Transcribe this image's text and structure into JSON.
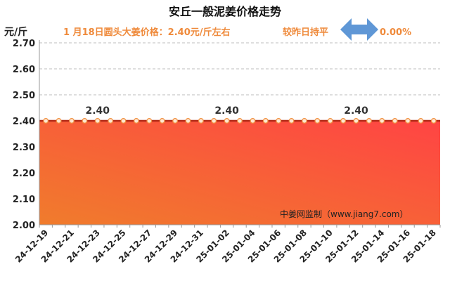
{
  "title": "安丘一般泥姜价格走势",
  "unit_label": "元/斤",
  "price_note": "1 月18日圆头大姜价格：2.40元/斤左右",
  "trend_note": "较昨日持平",
  "change_value": "0.00%",
  "watermark": "中姜网监制（www.jiang7.com）",
  "colors": {
    "area_top": "#ff4444",
    "area_bottom": "#f07c2c",
    "line": "#b22a18",
    "marker_fill": "#ffe7d2",
    "marker_stroke": "#f09040",
    "arrow": "#5f97d6",
    "accent_text": "#ef8a3b"
  },
  "chart_data": {
    "type": "area",
    "title": "安丘一般泥姜价格走势",
    "ylabel": "元/斤",
    "xlabel": "",
    "ylim": [
      2.0,
      2.7
    ],
    "yticks": [
      "2.00",
      "2.10",
      "2.20",
      "2.30",
      "2.40",
      "2.50",
      "2.60",
      "2.70"
    ],
    "grid": true,
    "x": [
      "24-12-19",
      "24-12-20",
      "24-12-21",
      "24-12-22",
      "24-12-23",
      "24-12-24",
      "24-12-25",
      "24-12-26",
      "24-12-27",
      "24-12-28",
      "24-12-29",
      "24-12-30",
      "24-12-31",
      "25-01-01",
      "25-01-02",
      "25-01-03",
      "25-01-04",
      "25-01-05",
      "25-01-06",
      "25-01-07",
      "25-01-08",
      "25-01-09",
      "25-01-10",
      "25-01-11",
      "25-01-12",
      "25-01-13",
      "25-01-14",
      "25-01-15",
      "25-01-16",
      "25-01-17",
      "25-01-18"
    ],
    "xtick_labels": [
      "24-12-19",
      "24-12-21",
      "24-12-23",
      "24-12-25",
      "24-12-27",
      "24-12-29",
      "24-12-31",
      "25-01-02",
      "25-01-04",
      "25-01-06",
      "25-01-08",
      "25-01-10",
      "25-01-12",
      "25-01-14",
      "25-01-16",
      "25-01-18"
    ],
    "values": [
      2.4,
      2.4,
      2.4,
      2.4,
      2.4,
      2.4,
      2.4,
      2.4,
      2.4,
      2.4,
      2.4,
      2.4,
      2.4,
      2.4,
      2.4,
      2.4,
      2.4,
      2.4,
      2.4,
      2.4,
      2.4,
      2.4,
      2.4,
      2.4,
      2.4,
      2.4,
      2.4,
      2.4,
      2.4,
      2.4,
      2.4
    ],
    "data_labels": [
      {
        "x": "24-12-23",
        "value": "2.40"
      },
      {
        "x": "25-01-02",
        "value": "2.40"
      },
      {
        "x": "25-01-12",
        "value": "2.40"
      }
    ]
  }
}
